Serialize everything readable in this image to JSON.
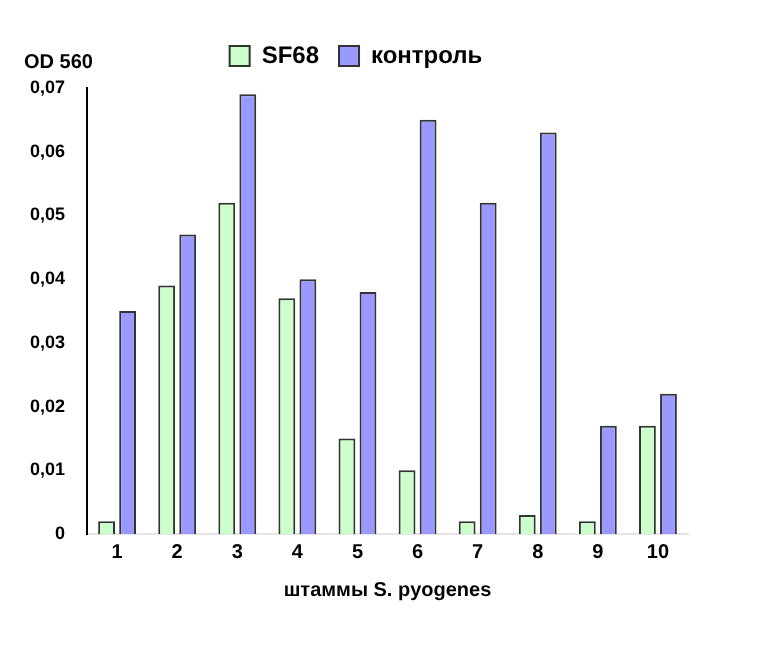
{
  "chart_data": {
    "type": "bar",
    "xlabel": "штаммы S. pyogenes",
    "ylabel": "OD 560",
    "categories": [
      "1",
      "2",
      "3",
      "4",
      "5",
      "6",
      "7",
      "8",
      "9",
      "10"
    ],
    "series": [
      {
        "name": "SF68",
        "color": "#ccffcc",
        "values": [
          0.002,
          0.039,
          0.052,
          0.037,
          0.015,
          0.01,
          0.002,
          0.003,
          0.002,
          0.017
        ]
      },
      {
        "name": "контроль",
        "color": "#9999ff",
        "values": [
          0.035,
          0.047,
          0.069,
          0.04,
          0.038,
          0.065,
          0.052,
          0.063,
          0.017,
          0.022
        ]
      }
    ],
    "ylim": [
      0,
      0.07
    ],
    "yticks": [
      0,
      {
        "value": 0.01,
        "label": "0,01"
      },
      {
        "value": 0.02,
        "label": "0,02"
      },
      {
        "value": 0.03,
        "label": "0,03"
      },
      {
        "value": 0.04,
        "label": "0,04"
      },
      {
        "value": 0.05,
        "label": "0,05"
      },
      {
        "value": 0.06,
        "label": "0,06"
      },
      {
        "value": 0.07,
        "label": "0,07"
      }
    ],
    "grid": false,
    "legend": "top"
  }
}
